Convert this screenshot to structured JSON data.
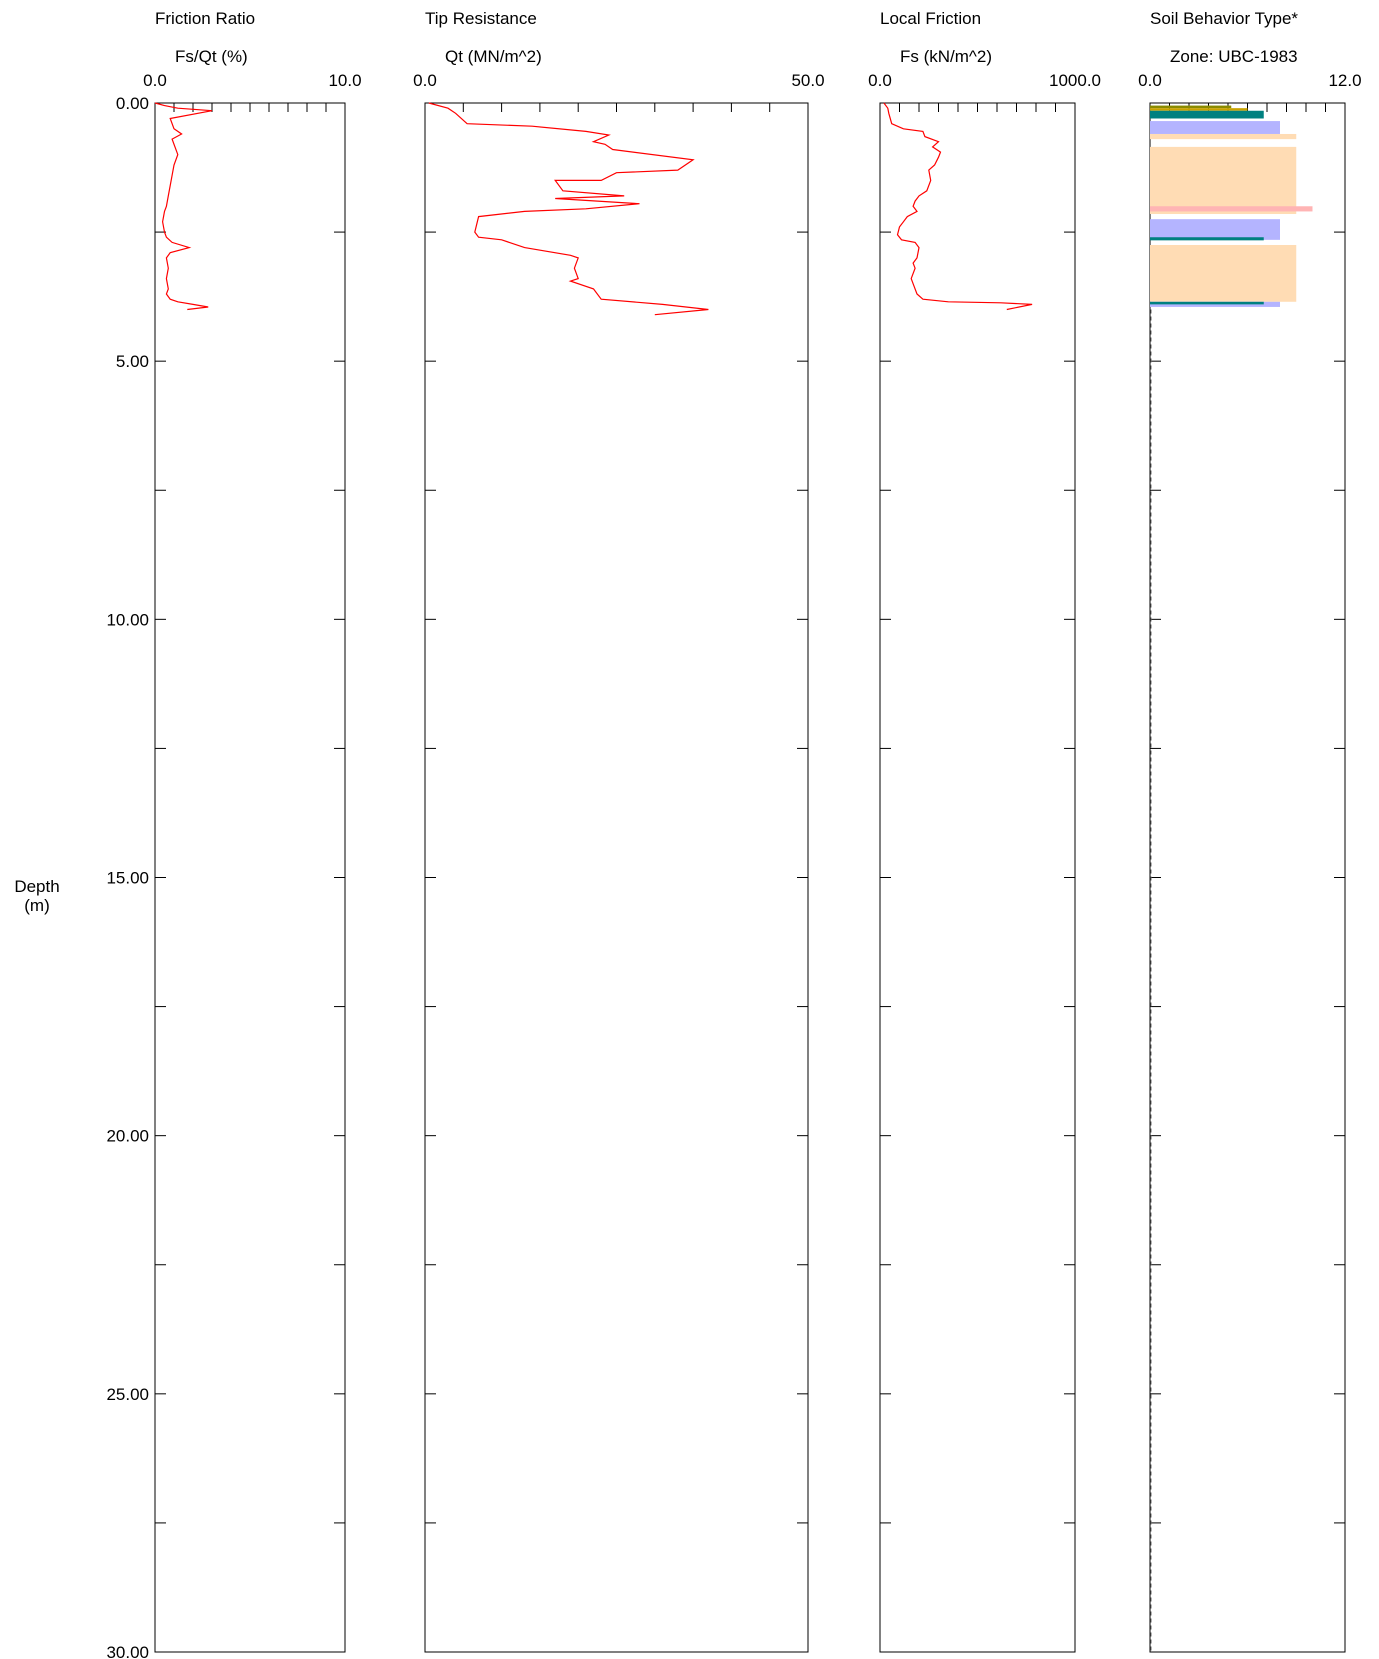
{
  "depth_axis": {
    "label_line1": "Depth",
    "label_line2": "(m)",
    "ticks": [
      "0.00",
      "5.00",
      "10.00",
      "15.00",
      "20.00",
      "25.00",
      "30.00"
    ]
  },
  "chart_data": [
    {
      "type": "line",
      "title": "Friction Ratio",
      "xlabel": "Fs/Qt (%)",
      "ylabel": "Depth (m)",
      "xlim": [
        0,
        10
      ],
      "ylim": [
        0,
        30
      ],
      "x_tick_labels": [
        "0.0",
        "10.0"
      ],
      "y_inverted": true,
      "grid": false,
      "color": "#ff0000",
      "series": [
        {
          "x": [
            0.0,
            0.5,
            1.2,
            3.0,
            0.8,
            1.0,
            1.4,
            0.9,
            1.2,
            1.0,
            0.9,
            0.8,
            0.7,
            0.6,
            0.5,
            0.4,
            0.5,
            0.6,
            0.9,
            1.8,
            0.8,
            0.6,
            0.7,
            0.6,
            0.7,
            0.6,
            0.8,
            1.2,
            2.0,
            2.8,
            1.7
          ],
          "y": [
            0.0,
            0.05,
            0.1,
            0.15,
            0.3,
            0.5,
            0.6,
            0.7,
            1.0,
            1.2,
            1.4,
            1.6,
            1.8,
            2.0,
            2.1,
            2.3,
            2.5,
            2.6,
            2.7,
            2.8,
            2.9,
            3.0,
            3.2,
            3.4,
            3.6,
            3.7,
            3.8,
            3.85,
            3.9,
            3.95,
            4.0
          ]
        }
      ]
    },
    {
      "type": "line",
      "title": "Tip Resistance",
      "xlabel": "Qt (MN/m^2)",
      "ylabel": "Depth (m)",
      "xlim": [
        0,
        50
      ],
      "ylim": [
        0,
        30
      ],
      "x_tick_labels": [
        "0.0",
        "50.0"
      ],
      "y_inverted": true,
      "grid": false,
      "color": "#ff0000",
      "series": [
        {
          "x": [
            0.5,
            3.0,
            4.0,
            5.5,
            14.0,
            21.0,
            24.0,
            22.0,
            23.5,
            24.5,
            35.0,
            33.0,
            25.0,
            23.0,
            17.0,
            18.0,
            26.0,
            17.0,
            28.0,
            21.0,
            13.0,
            7.0,
            6.5,
            7.0,
            10.0,
            13.0,
            19.0,
            20.0,
            19.5,
            20.0,
            19.0,
            22.0,
            23.0,
            31.0,
            37.0,
            30.0
          ],
          "y": [
            0.0,
            0.1,
            0.2,
            0.4,
            0.45,
            0.55,
            0.62,
            0.75,
            0.8,
            0.9,
            1.1,
            1.3,
            1.35,
            1.5,
            1.5,
            1.7,
            1.8,
            1.85,
            1.95,
            2.05,
            2.1,
            2.2,
            2.5,
            2.6,
            2.65,
            2.8,
            2.95,
            3.0,
            3.2,
            3.4,
            3.45,
            3.6,
            3.8,
            3.9,
            4.0,
            4.1
          ]
        }
      ]
    },
    {
      "type": "line",
      "title": "Local Friction",
      "xlabel": "Fs (kN/m^2)",
      "ylabel": "Depth (m)",
      "xlim": [
        0,
        1000
      ],
      "ylim": [
        0,
        30
      ],
      "x_tick_labels": [
        "0.0",
        "1000.0"
      ],
      "y_inverted": true,
      "grid": false,
      "color": "#ff0000",
      "series": [
        {
          "x": [
            20,
            40,
            45,
            60,
            120,
            220,
            230,
            300,
            270,
            310,
            300,
            280,
            250,
            260,
            240,
            200,
            180,
            170,
            190,
            140,
            120,
            100,
            90,
            110,
            180,
            200,
            190,
            170,
            180,
            160,
            170,
            190,
            220,
            350,
            620,
            780,
            650
          ],
          "y": [
            0.0,
            0.1,
            0.2,
            0.4,
            0.5,
            0.55,
            0.65,
            0.75,
            0.85,
            0.95,
            1.05,
            1.2,
            1.3,
            1.5,
            1.7,
            1.8,
            1.9,
            2.0,
            2.1,
            2.2,
            2.3,
            2.4,
            2.55,
            2.65,
            2.7,
            2.8,
            3.0,
            3.1,
            3.2,
            3.4,
            3.5,
            3.7,
            3.8,
            3.85,
            3.87,
            3.9,
            4.0
          ]
        }
      ]
    },
    {
      "type": "bar",
      "title": "Soil Behavior Type*",
      "xlabel": "Zone: UBC-1983",
      "ylabel": "Depth (m)",
      "xlim": [
        0,
        12
      ],
      "ylim": [
        0,
        30
      ],
      "x_tick_labels": [
        "0.0",
        "12.0"
      ],
      "y_inverted": true,
      "grid": false,
      "bars": [
        {
          "top": 0.05,
          "bottom": 0.1,
          "zone": 5,
          "color": "#8b8b00"
        },
        {
          "top": 0.1,
          "bottom": 0.15,
          "zone": 6,
          "color": "#c8a200"
        },
        {
          "top": 0.15,
          "bottom": 0.3,
          "zone": 7,
          "color": "#008080"
        },
        {
          "top": 0.35,
          "bottom": 0.6,
          "zone": 8,
          "color": "#b4b4ff"
        },
        {
          "top": 0.6,
          "bottom": 0.7,
          "zone": 9,
          "color": "#ffdcb4"
        },
        {
          "top": 0.85,
          "bottom": 2.15,
          "zone": 9,
          "color": "#ffdcb4"
        },
        {
          "top": 2.0,
          "bottom": 2.1,
          "zone": 10,
          "color": "#ffb4b4"
        },
        {
          "top": 2.25,
          "bottom": 2.65,
          "zone": 8,
          "color": "#b4b4ff"
        },
        {
          "top": 2.6,
          "bottom": 2.66,
          "zone": 7,
          "color": "#008080"
        },
        {
          "top": 2.75,
          "bottom": 3.85,
          "zone": 9,
          "color": "#ffdcb4"
        },
        {
          "top": 3.85,
          "bottom": 3.95,
          "zone": 8,
          "color": "#b4b4ff"
        },
        {
          "top": 3.85,
          "bottom": 3.9,
          "zone": 7,
          "color": "#008080"
        }
      ]
    }
  ]
}
